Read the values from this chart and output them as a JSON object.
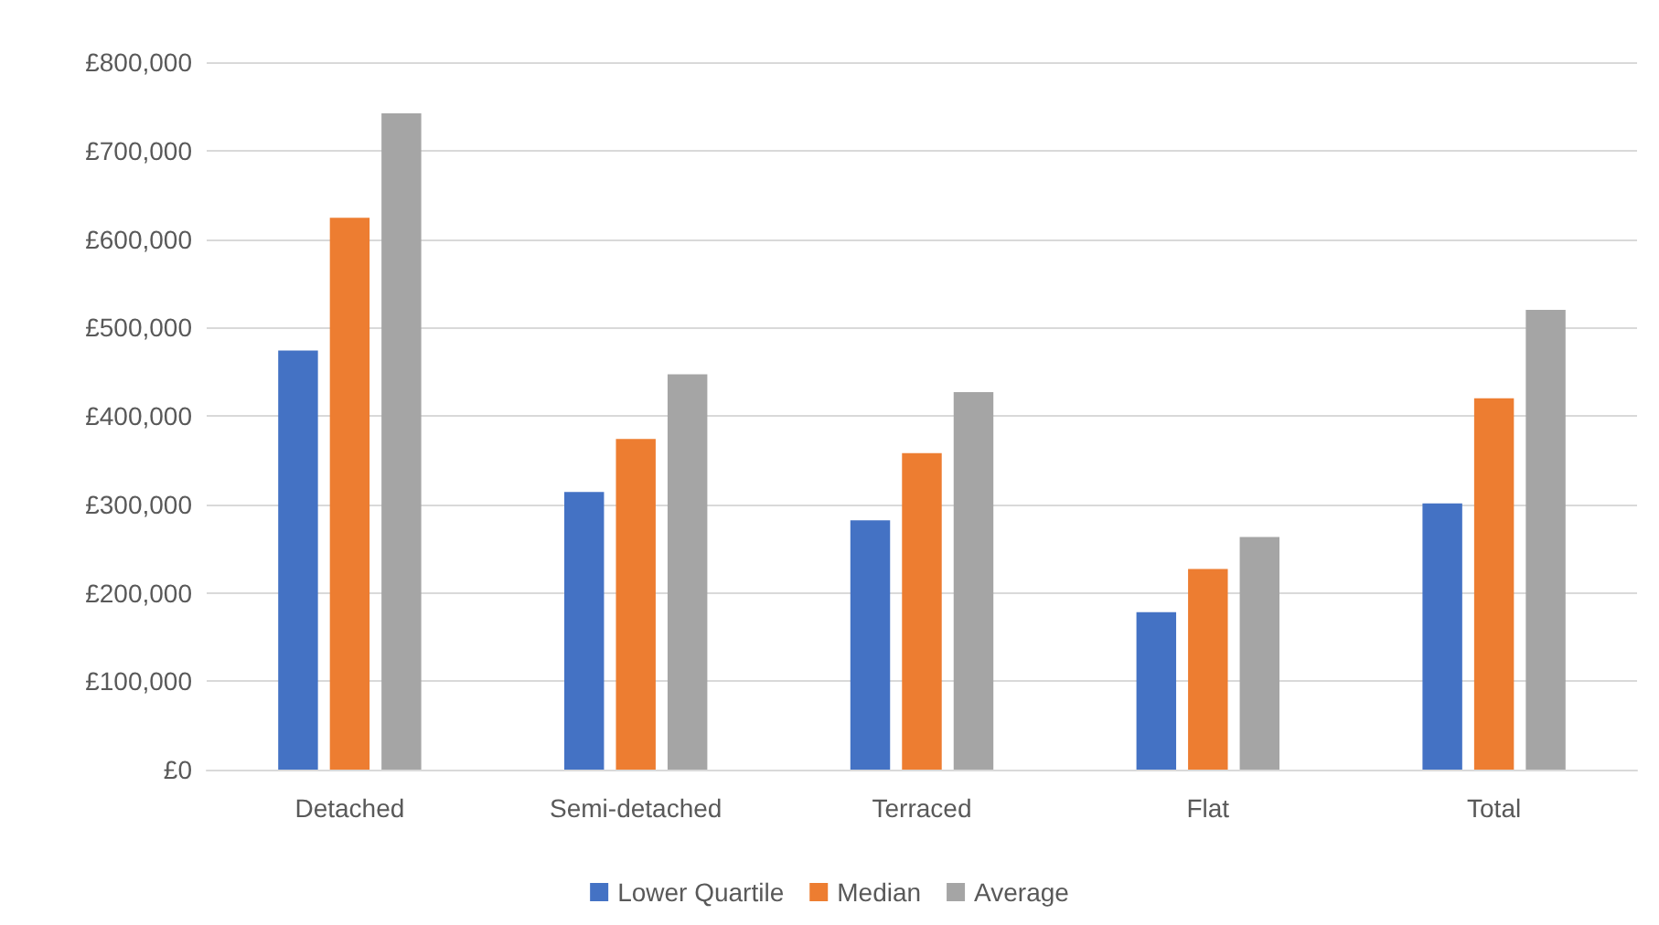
{
  "chart_data": {
    "type": "bar",
    "categories": [
      "Detached",
      "Semi-detached",
      "Terraced",
      "Flat",
      "Total"
    ],
    "series": [
      {
        "name": "Lower Quartile",
        "color": "#4472c4",
        "values": [
          474000,
          314000,
          282000,
          178000,
          301000
        ]
      },
      {
        "name": "Median",
        "color": "#ed7d31",
        "values": [
          624000,
          374000,
          358000,
          227000,
          420000
        ]
      },
      {
        "name": "Average",
        "color": "#a5a5a5",
        "values": [
          742000,
          447000,
          427000,
          263000,
          520000
        ]
      }
    ],
    "ylim": [
      0,
      800000
    ],
    "yticks": [
      {
        "value": 0,
        "label": "£0"
      },
      {
        "value": 100000,
        "label": "£100,000"
      },
      {
        "value": 200000,
        "label": "£200,000"
      },
      {
        "value": 300000,
        "label": "£300,000"
      },
      {
        "value": 400000,
        "label": "£400,000"
      },
      {
        "value": 500000,
        "label": "£500,000"
      },
      {
        "value": 600000,
        "label": "£600,000"
      },
      {
        "value": 700000,
        "label": "£700,000"
      },
      {
        "value": 800000,
        "label": "£800,000"
      }
    ],
    "grid": true,
    "legend": "bottom"
  }
}
